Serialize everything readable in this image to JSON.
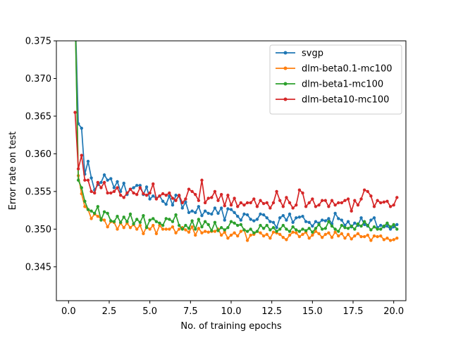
{
  "chart_data": {
    "type": "line",
    "xlabel": "No. of training epochs",
    "ylabel": "Error rate on test",
    "xlim": [
      -0.75,
      20.75
    ],
    "ylim": [
      0.3405,
      0.375
    ],
    "xticks": [
      0.0,
      2.5,
      5.0,
      7.5,
      10.0,
      12.5,
      15.0,
      17.5,
      20.0
    ],
    "xtick_labels": [
      "0.0",
      "2.5",
      "5.0",
      "7.5",
      "10.0",
      "12.5",
      "15.0",
      "17.5",
      "20.0"
    ],
    "yticks": [
      0.345,
      0.35,
      0.355,
      0.36,
      0.365,
      0.37,
      0.375
    ],
    "ytick_labels": [
      "0.345",
      "0.350",
      "0.355",
      "0.360",
      "0.365",
      "0.370",
      "0.375"
    ],
    "grid": false,
    "legend_position": "top-right",
    "x_start": 0.4,
    "x_step": 0.2,
    "series": [
      {
        "name": "svgp",
        "color": "#1f77b4",
        "values": [
          0.3795,
          0.364,
          0.3634,
          0.3573,
          0.359,
          0.3568,
          0.3552,
          0.3559,
          0.3562,
          0.3572,
          0.3565,
          0.3567,
          0.3555,
          0.3563,
          0.355,
          0.3561,
          0.3546,
          0.3553,
          0.3555,
          0.3558,
          0.3558,
          0.3546,
          0.3556,
          0.354,
          0.3544,
          0.3541,
          0.3544,
          0.3537,
          0.3533,
          0.3544,
          0.3532,
          0.3545,
          0.3544,
          0.3528,
          0.3536,
          0.3522,
          0.3524,
          0.3522,
          0.353,
          0.3518,
          0.3524,
          0.3521,
          0.352,
          0.3528,
          0.3521,
          0.3528,
          0.3512,
          0.3527,
          0.3526,
          0.3522,
          0.3517,
          0.3512,
          0.352,
          0.3519,
          0.3513,
          0.3511,
          0.3513,
          0.352,
          0.3519,
          0.3515,
          0.351,
          0.3509,
          0.3502,
          0.3515,
          0.3518,
          0.3512,
          0.352,
          0.3509,
          0.3515,
          0.3516,
          0.3517,
          0.351,
          0.3509,
          0.3504,
          0.351,
          0.3508,
          0.3512,
          0.3511,
          0.3514,
          0.3507,
          0.3521,
          0.3514,
          0.3512,
          0.3505,
          0.351,
          0.3503,
          0.3508,
          0.3505,
          0.3515,
          0.3506,
          0.3504,
          0.3512,
          0.3515,
          0.3502,
          0.3505,
          0.3503,
          0.3504,
          0.35,
          0.3503,
          0.3506
        ]
      },
      {
        "name": "dlm-beta0.1-mc100",
        "color": "#ff7f0e",
        "values": [
          0.3794,
          0.3571,
          0.3547,
          0.353,
          0.3526,
          0.3514,
          0.352,
          0.3517,
          0.3514,
          0.3512,
          0.3503,
          0.351,
          0.3509,
          0.35,
          0.3508,
          0.3502,
          0.3508,
          0.3502,
          0.3506,
          0.35,
          0.3505,
          0.3494,
          0.3503,
          0.35,
          0.3505,
          0.3494,
          0.3505,
          0.35,
          0.35,
          0.35,
          0.3503,
          0.3495,
          0.35,
          0.3502,
          0.3499,
          0.3496,
          0.3503,
          0.3492,
          0.3501,
          0.3495,
          0.3497,
          0.3496,
          0.3497,
          0.3497,
          0.35,
          0.3492,
          0.3496,
          0.3488,
          0.3492,
          0.3495,
          0.3491,
          0.3497,
          0.3499,
          0.3485,
          0.3492,
          0.3493,
          0.3497,
          0.3495,
          0.3491,
          0.3493,
          0.3488,
          0.3496,
          0.3495,
          0.3493,
          0.3489,
          0.3486,
          0.3492,
          0.3496,
          0.3495,
          0.349,
          0.3493,
          0.3496,
          0.3488,
          0.3492,
          0.3497,
          0.3494,
          0.3489,
          0.3493,
          0.3495,
          0.3489,
          0.3496,
          0.3491,
          0.3494,
          0.3488,
          0.3493,
          0.3487,
          0.3491,
          0.3494,
          0.349,
          0.349,
          0.3492,
          0.3485,
          0.3491,
          0.349,
          0.3491,
          0.3486,
          0.3488,
          0.3485,
          0.3486,
          0.3488
        ]
      },
      {
        "name": "dlm-beta1-mc100",
        "color": "#2ca02c",
        "values": [
          0.379,
          0.3565,
          0.3555,
          0.3537,
          0.3526,
          0.3524,
          0.3521,
          0.353,
          0.3512,
          0.3523,
          0.3521,
          0.3511,
          0.351,
          0.3517,
          0.3509,
          0.3516,
          0.351,
          0.352,
          0.3507,
          0.3513,
          0.3509,
          0.3518,
          0.3502,
          0.3512,
          0.3514,
          0.351,
          0.3508,
          0.3505,
          0.3514,
          0.3513,
          0.351,
          0.3519,
          0.3505,
          0.35,
          0.3505,
          0.3501,
          0.3511,
          0.35,
          0.3513,
          0.3503,
          0.351,
          0.3506,
          0.3498,
          0.3509,
          0.3498,
          0.3502,
          0.3499,
          0.3502,
          0.351,
          0.3508,
          0.3505,
          0.3506,
          0.3499,
          0.3497,
          0.35,
          0.3495,
          0.3497,
          0.3505,
          0.3501,
          0.3505,
          0.3499,
          0.3502,
          0.3497,
          0.35,
          0.3505,
          0.35,
          0.3497,
          0.3503,
          0.3499,
          0.3497,
          0.35,
          0.3498,
          0.3501,
          0.3496,
          0.3501,
          0.3506,
          0.35,
          0.3501,
          0.351,
          0.3504,
          0.35,
          0.3497,
          0.3505,
          0.3502,
          0.3501,
          0.3504,
          0.35,
          0.3507,
          0.3504,
          0.351,
          0.3505,
          0.3499,
          0.3503,
          0.35,
          0.35,
          0.3504,
          0.3508,
          0.3503,
          0.3506,
          0.35
        ]
      },
      {
        "name": "dlm-beta10-mc100",
        "color": "#d62728",
        "values": [
          0.3655,
          0.358,
          0.3598,
          0.3565,
          0.3565,
          0.355,
          0.3548,
          0.3562,
          0.3555,
          0.3562,
          0.3548,
          0.3548,
          0.355,
          0.3555,
          0.3545,
          0.3542,
          0.3548,
          0.3553,
          0.3548,
          0.3546,
          0.3555,
          0.3547,
          0.3545,
          0.3548,
          0.356,
          0.354,
          0.3544,
          0.3547,
          0.3545,
          0.3548,
          0.3541,
          0.3538,
          0.3545,
          0.3535,
          0.354,
          0.3553,
          0.355,
          0.3546,
          0.3538,
          0.3565,
          0.3535,
          0.3541,
          0.3542,
          0.355,
          0.3538,
          0.3546,
          0.3531,
          0.3545,
          0.3532,
          0.3541,
          0.353,
          0.3535,
          0.3532,
          0.3535,
          0.3535,
          0.354,
          0.353,
          0.3538,
          0.3534,
          0.3535,
          0.3528,
          0.3535,
          0.355,
          0.3538,
          0.353,
          0.3542,
          0.3535,
          0.3528,
          0.3532,
          0.3552,
          0.3548,
          0.353,
          0.3535,
          0.354,
          0.353,
          0.3532,
          0.3538,
          0.3538,
          0.353,
          0.3538,
          0.3532,
          0.3535,
          0.3535,
          0.3538,
          0.354,
          0.3524,
          0.3538,
          0.3532,
          0.354,
          0.3552,
          0.355,
          0.3544,
          0.353,
          0.3538,
          0.3535,
          0.3536,
          0.3537,
          0.353,
          0.3532,
          0.3542
        ]
      }
    ]
  }
}
